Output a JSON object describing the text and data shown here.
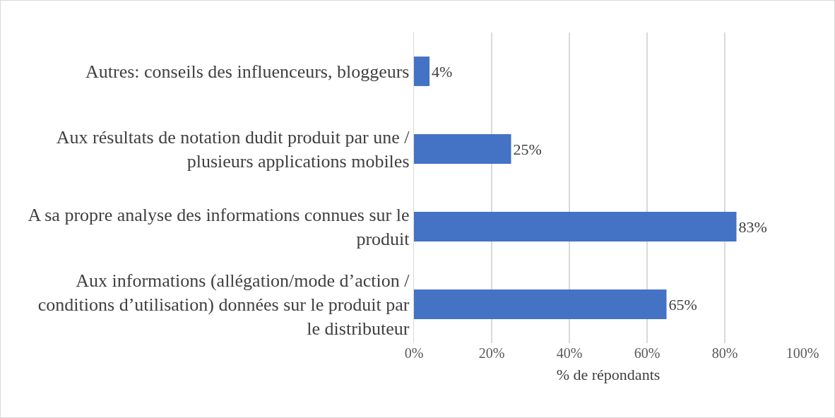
{
  "chart_data": {
    "type": "bar",
    "orientation": "horizontal",
    "categories": [
      "Autres: conseils des influenceurs, bloggeurs",
      "Aux résultats de notation dudit produit par une / plusieurs applications mobiles",
      "A sa propre analyse des informations connues sur le produit",
      "Aux informations (allégation/mode d’action / conditions d’utilisation) données sur le produit par le distributeur"
    ],
    "values": [
      4,
      25,
      83,
      65
    ],
    "value_labels": [
      "4%",
      "25%",
      "83%",
      "65%"
    ],
    "color": "#4472c4",
    "xlabel": "% de répondants",
    "xlim": [
      0,
      100
    ],
    "xticks": [
      {
        "value": 0,
        "label": "0%"
      },
      {
        "value": 20,
        "label": "20%"
      },
      {
        "value": 40,
        "label": "40%"
      },
      {
        "value": 60,
        "label": "60%"
      },
      {
        "value": 80,
        "label": "80%"
      },
      {
        "value": 100,
        "label": "100%"
      }
    ],
    "grid": "x"
  }
}
